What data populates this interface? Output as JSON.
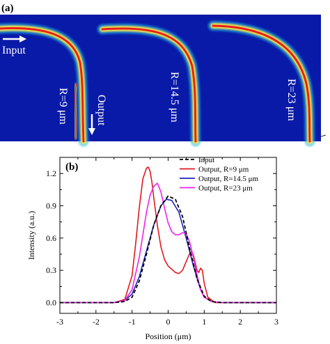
{
  "panel_a": {
    "label": "(a)",
    "input_label": "Input",
    "output_label": "Output",
    "radius_labels": [
      "R=9 μm",
      "R=14.5 μm",
      "R=23 μm"
    ],
    "colors": {
      "background": "#0a1aa8",
      "core": "#e8201a",
      "glow": "#f7e64a"
    }
  },
  "chart_data": {
    "type": "line",
    "panel_label": "(b)",
    "title": "",
    "xlabel": "Position (μm)",
    "ylabel": "Intensity (a.u.)",
    "xlim": [
      -3,
      3
    ],
    "ylim": [
      -0.1,
      1.35
    ],
    "xticks": [
      -3,
      -2,
      -1,
      0,
      1,
      2,
      3
    ],
    "yticks": [
      0.0,
      0.3,
      0.6,
      0.9,
      1.2
    ],
    "ytick_labels": [
      "0.0",
      "0.3",
      "0.6",
      "0.9",
      "1.2"
    ],
    "grid": false,
    "legend_position": "top-right",
    "series": [
      {
        "name": "Input",
        "color": "#000000",
        "style": "dashed",
        "x": [
          -3.0,
          -1.5,
          -1.2,
          -1.0,
          -0.8,
          -0.6,
          -0.4,
          -0.2,
          0.0,
          0.2,
          0.4,
          0.6,
          0.8,
          1.0,
          1.2,
          1.5,
          3.0
        ],
        "y": [
          0.0,
          0.0,
          0.01,
          0.05,
          0.2,
          0.45,
          0.72,
          0.9,
          0.99,
          0.96,
          0.8,
          0.5,
          0.22,
          0.06,
          0.01,
          0.0,
          0.0
        ]
      },
      {
        "name": "Output, R=9 μm",
        "color": "#e0181e",
        "style": "solid",
        "x": [
          -3.0,
          -1.5,
          -1.2,
          -1.0,
          -0.9,
          -0.8,
          -0.7,
          -0.6,
          -0.55,
          -0.5,
          -0.45,
          -0.4,
          -0.3,
          -0.2,
          -0.1,
          0.0,
          0.1,
          0.2,
          0.3,
          0.4,
          0.5,
          0.6,
          0.65,
          0.7,
          0.8,
          0.85,
          0.9,
          0.95,
          1.0,
          1.1,
          1.3,
          3.0
        ],
        "y": [
          0.0,
          0.0,
          0.03,
          0.25,
          0.55,
          0.88,
          1.15,
          1.25,
          1.26,
          1.22,
          1.12,
          0.98,
          0.72,
          0.52,
          0.4,
          0.34,
          0.31,
          0.28,
          0.27,
          0.3,
          0.38,
          0.46,
          0.48,
          0.44,
          0.3,
          0.28,
          0.32,
          0.3,
          0.18,
          0.05,
          0.0,
          0.0
        ]
      },
      {
        "name": "Output, R=14.5 μm",
        "color": "#1a22b4",
        "style": "solid",
        "x": [
          -3.0,
          -1.5,
          -1.2,
          -1.0,
          -0.8,
          -0.6,
          -0.4,
          -0.2,
          -0.05,
          0.1,
          0.3,
          0.5,
          0.7,
          0.9,
          1.0,
          1.2,
          1.5,
          3.0
        ],
        "y": [
          0.0,
          0.0,
          0.02,
          0.08,
          0.24,
          0.48,
          0.72,
          0.9,
          0.96,
          0.95,
          0.84,
          0.6,
          0.34,
          0.12,
          0.05,
          0.01,
          0.0,
          0.0
        ]
      },
      {
        "name": "Output, R=23 μm",
        "color": "#ee22ee",
        "style": "solid",
        "x": [
          -3.0,
          -1.5,
          -1.2,
          -1.0,
          -0.8,
          -0.6,
          -0.5,
          -0.4,
          -0.3,
          -0.2,
          -0.1,
          0.0,
          0.1,
          0.2,
          0.3,
          0.4,
          0.5,
          0.6,
          0.7,
          0.8,
          0.9,
          1.0,
          1.2,
          1.5,
          3.0
        ],
        "y": [
          0.0,
          0.0,
          0.02,
          0.12,
          0.42,
          0.84,
          1.0,
          1.08,
          1.11,
          1.03,
          0.88,
          0.74,
          0.66,
          0.63,
          0.63,
          0.65,
          0.64,
          0.56,
          0.42,
          0.26,
          0.12,
          0.05,
          0.01,
          0.0,
          0.0
        ]
      }
    ]
  }
}
